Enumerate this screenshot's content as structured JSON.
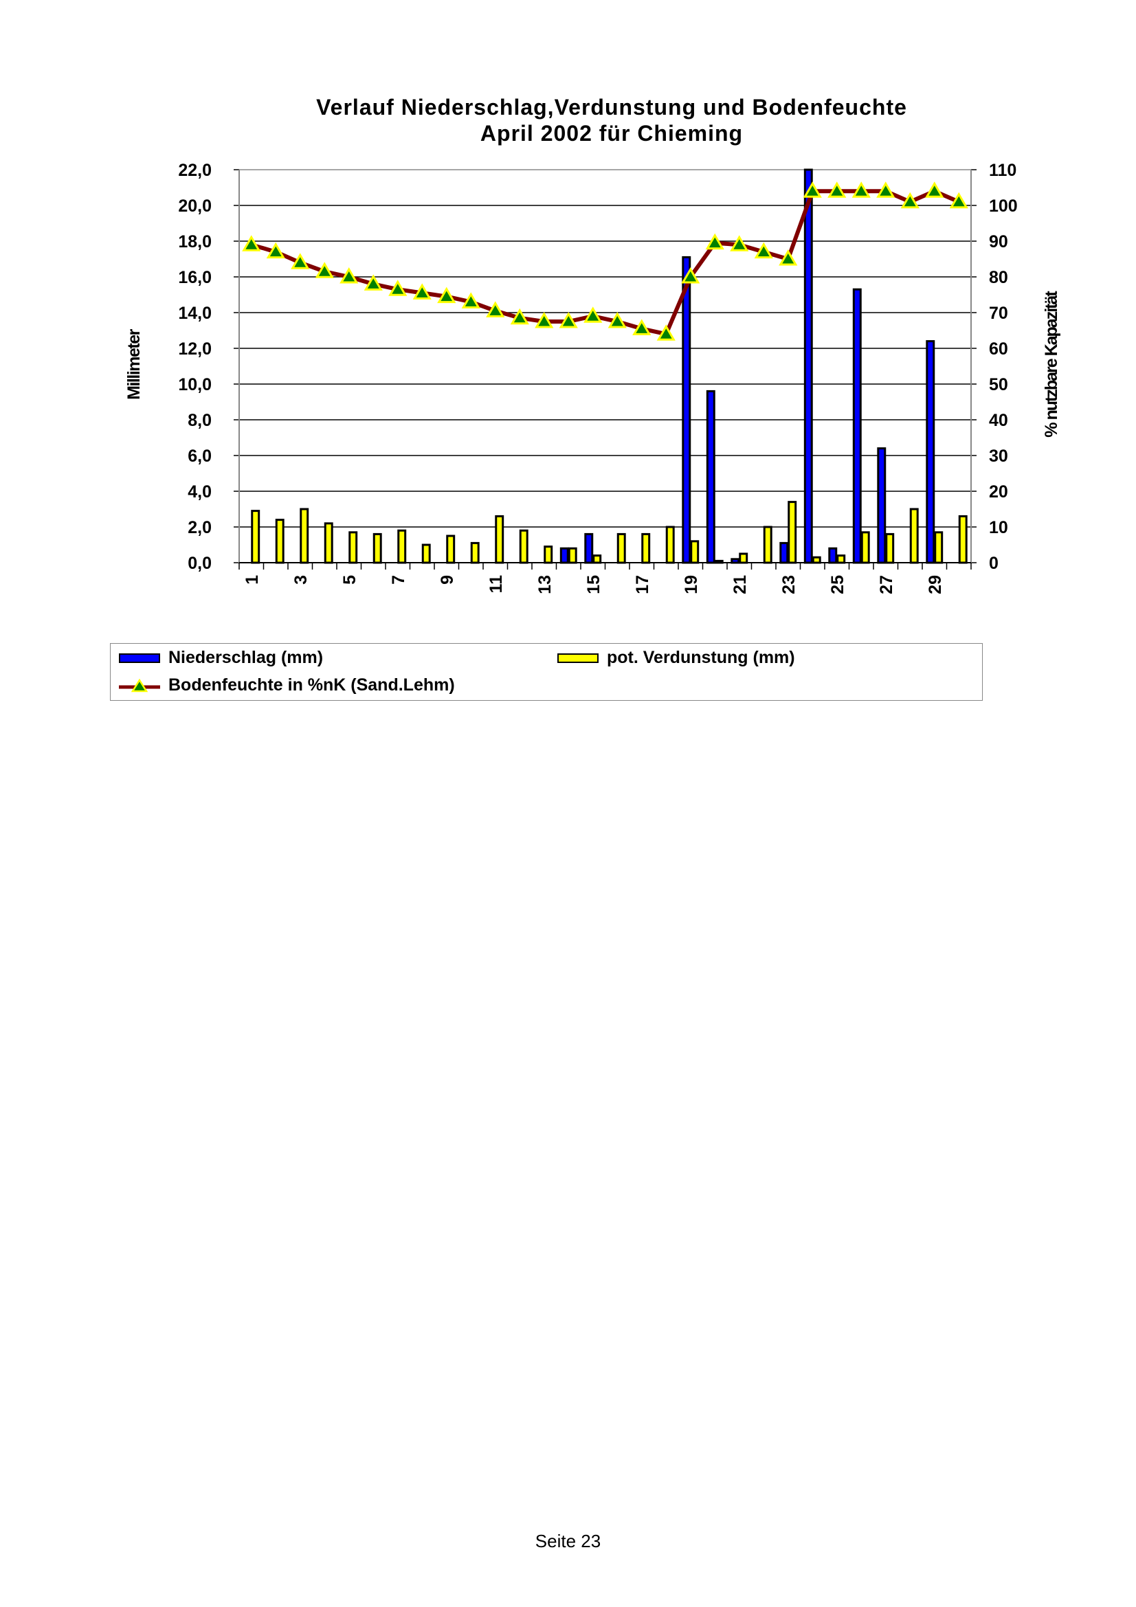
{
  "chart_data": {
    "type": "bar+line",
    "title": "Verlauf Niederschlag,Verdunstung und Bodenfeuchte",
    "subtitle": "April 2002 für Chieming",
    "ylabel": "Millimeter",
    "y2label": "% nutzbare Kapazität",
    "ylim": [
      0,
      22
    ],
    "y2lim": [
      0,
      110
    ],
    "yticks": [
      "0,0",
      "2,0",
      "4,0",
      "6,0",
      "8,0",
      "10,0",
      "12,0",
      "14,0",
      "16,0",
      "18,0",
      "20,0",
      "22,0"
    ],
    "y2ticks": [
      "0",
      "10",
      "20",
      "30",
      "40",
      "50",
      "60",
      "70",
      "80",
      "90",
      "100",
      "110"
    ],
    "grid": true,
    "legend_position": "bottom",
    "categories": [
      1,
      2,
      3,
      4,
      5,
      6,
      7,
      8,
      9,
      10,
      11,
      12,
      13,
      14,
      15,
      16,
      17,
      18,
      19,
      20,
      21,
      22,
      23,
      24,
      25,
      26,
      27,
      28,
      29,
      30
    ],
    "xtick_labels": [
      "1",
      "3",
      "5",
      "7",
      "9",
      "11",
      "13",
      "15",
      "17",
      "19",
      "21",
      "23",
      "25",
      "27",
      "29"
    ],
    "series": [
      {
        "name": "Niederschlag (mm)",
        "type": "bar",
        "axis": "left",
        "color": "#0000ff",
        "values": [
          0,
          0,
          0,
          0,
          0,
          0,
          0,
          0,
          0,
          0,
          0,
          0,
          0,
          0.8,
          1.6,
          0,
          0,
          0,
          17.1,
          9.6,
          0.2,
          0,
          1.1,
          22.1,
          0.8,
          15.3,
          6.4,
          0,
          12.4,
          0
        ]
      },
      {
        "name": "pot. Verdunstung (mm)",
        "type": "bar",
        "axis": "left",
        "color": "#ffff00",
        "values": [
          2.9,
          2.4,
          3.0,
          2.2,
          1.7,
          1.6,
          1.8,
          1.0,
          1.5,
          1.1,
          2.6,
          1.8,
          0.9,
          0.8,
          0.4,
          1.6,
          1.6,
          2.0,
          1.2,
          0.1,
          0.5,
          2.0,
          3.4,
          0.3,
          0.4,
          1.7,
          1.6,
          3.0,
          1.7,
          2.6
        ]
      },
      {
        "name": "Bodenfeuchte in %nK (Sand.Lehm)",
        "type": "line",
        "axis": "right",
        "color": "#800000",
        "marker_color": "#008000",
        "marker_edge": "#ffff00",
        "values": [
          89,
          87,
          84,
          81.5,
          80,
          78,
          76.5,
          75.5,
          74.5,
          73,
          70.5,
          68.5,
          67.5,
          67.5,
          69,
          67.5,
          65.5,
          64,
          80,
          89.5,
          89,
          87,
          85,
          104,
          104,
          104,
          104,
          101,
          104,
          101
        ]
      }
    ]
  },
  "footer": "Seite 23"
}
